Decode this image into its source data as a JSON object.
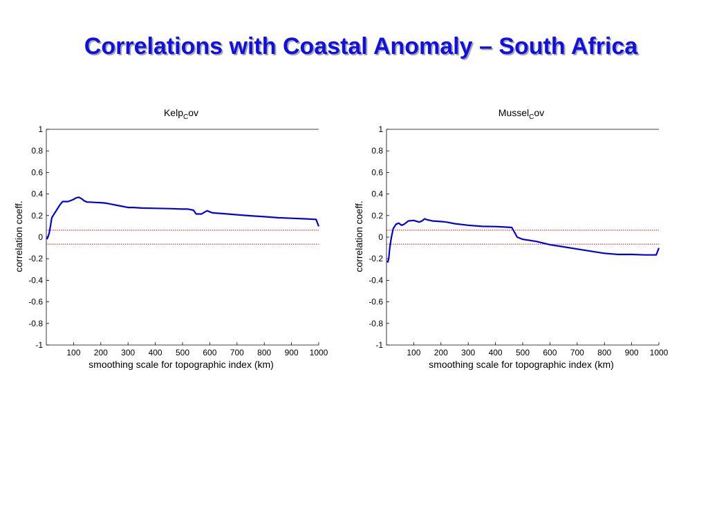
{
  "slide": {
    "title": "Correlations with Coastal Anomaly – South Africa"
  },
  "colors": {
    "title": "#1010e6",
    "series": "#0000dd",
    "threshold": "#dd0000",
    "axis": "#000000"
  },
  "chart_data": [
    {
      "type": "line",
      "title_main": "Kelp",
      "title_sub": "C",
      "title_tail": "ov",
      "xlabel": "smoothing scale for topographic index (km)",
      "ylabel": "correlation coeff.",
      "xlim": [
        0,
        1000
      ],
      "ylim": [
        -1,
        1
      ],
      "xticks": [
        100,
        200,
        300,
        400,
        500,
        600,
        700,
        800,
        900,
        1000
      ],
      "yticks": [
        -1,
        -0.8,
        -0.6,
        -0.4,
        -0.2,
        0,
        0.2,
        0.4,
        0.6,
        0.8,
        1
      ],
      "ytick_labels": [
        "-1",
        "-0.8",
        "-0.6",
        "-0.4",
        "-0.2",
        "0",
        "0.2",
        "0.4",
        "0.6",
        "0.8",
        "1"
      ],
      "thresholds": [
        0.065,
        -0.065
      ],
      "grid": false,
      "series": [
        {
          "x": [
            2,
            5,
            10,
            15,
            20,
            25,
            30,
            40,
            50,
            60,
            70,
            80,
            90,
            100,
            110,
            120,
            130,
            140,
            150,
            160,
            180,
            200,
            220,
            240,
            260,
            280,
            300,
            320,
            350,
            400,
            450,
            500,
            520,
            540,
            550,
            570,
            580,
            590,
            600,
            610,
            650,
            700,
            750,
            800,
            850,
            900,
            950,
            990,
            1000
          ],
          "y": [
            -0.02,
            0.0,
            0.03,
            0.1,
            0.18,
            0.2,
            0.22,
            0.26,
            0.3,
            0.33,
            0.33,
            0.33,
            0.34,
            0.35,
            0.365,
            0.37,
            0.355,
            0.335,
            0.325,
            0.325,
            0.322,
            0.32,
            0.315,
            0.305,
            0.295,
            0.285,
            0.275,
            0.275,
            0.27,
            0.267,
            0.265,
            0.26,
            0.26,
            0.25,
            0.215,
            0.215,
            0.23,
            0.245,
            0.235,
            0.225,
            0.218,
            0.208,
            0.198,
            0.19,
            0.18,
            0.175,
            0.17,
            0.165,
            0.1
          ]
        }
      ]
    },
    {
      "type": "line",
      "title_main": "Mussel",
      "title_sub": "C",
      "title_tail": "ov",
      "xlabel": "smoothing scale for topographic index (km)",
      "ylabel": "correlation coeff.",
      "xlim": [
        0,
        1000
      ],
      "ylim": [
        -1,
        1
      ],
      "xticks": [
        100,
        200,
        300,
        400,
        500,
        600,
        700,
        800,
        900,
        1000
      ],
      "yticks": [
        -1,
        -0.8,
        -0.6,
        -0.4,
        -0.2,
        0,
        0.2,
        0.4,
        0.6,
        0.8,
        1
      ],
      "ytick_labels": [
        "-1",
        "-0.8",
        "-0.6",
        "-0.4",
        "-0.2",
        "0",
        "0.2",
        "0.4",
        "0.6",
        "0.8",
        "1"
      ],
      "thresholds": [
        0.065,
        -0.065
      ],
      "grid": false,
      "series": [
        {
          "x": [
            2,
            5,
            8,
            12,
            18,
            25,
            35,
            45,
            55,
            65,
            80,
            100,
            120,
            130,
            140,
            150,
            170,
            200,
            220,
            250,
            300,
            350,
            400,
            440,
            460,
            480,
            500,
            550,
            600,
            650,
            700,
            750,
            800,
            850,
            900,
            950,
            990,
            1000
          ],
          "y": [
            -0.22,
            -0.23,
            -0.2,
            -0.1,
            0.0,
            0.08,
            0.12,
            0.13,
            0.11,
            0.12,
            0.15,
            0.155,
            0.14,
            0.15,
            0.17,
            0.16,
            0.15,
            0.145,
            0.14,
            0.125,
            0.11,
            0.1,
            0.098,
            0.093,
            0.09,
            0.0,
            -0.02,
            -0.04,
            -0.07,
            -0.09,
            -0.11,
            -0.13,
            -0.15,
            -0.16,
            -0.16,
            -0.165,
            -0.165,
            -0.1
          ]
        }
      ]
    }
  ]
}
